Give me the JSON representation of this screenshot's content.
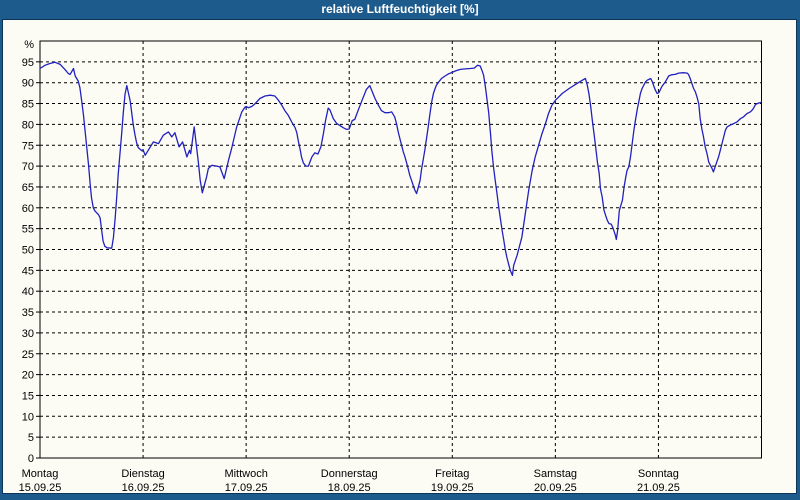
{
  "title": "relative Luftfeuchtigkeit [%]",
  "colors": {
    "titlebar": "#1d5b8d",
    "frame": "#1d5b8d",
    "inner_border": "#0b3456",
    "panel_bg": "#fcfcf5",
    "line": "#2121bf",
    "grid": "#000000",
    "text": "#000000",
    "title_text": "#ffffff"
  },
  "y_axis": {
    "unit_label": "%",
    "ticks": [
      0,
      5,
      10,
      15,
      20,
      25,
      30,
      35,
      40,
      45,
      50,
      55,
      60,
      65,
      70,
      75,
      80,
      85,
      90,
      95
    ]
  },
  "x_axis": {
    "days": [
      {
        "name": "Montag",
        "date": "15.09.25"
      },
      {
        "name": "Dienstag",
        "date": "16.09.25"
      },
      {
        "name": "Mittwoch",
        "date": "17.09.25"
      },
      {
        "name": "Donnerstag",
        "date": "18.09.25"
      },
      {
        "name": "Freitag",
        "date": "19.09.25"
      },
      {
        "name": "Samstag",
        "date": "20.09.25"
      },
      {
        "name": "Sonntag",
        "date": "21.09.25"
      }
    ],
    "vertical_gridlines_hours": [
      24,
      48,
      72,
      96,
      120,
      144
    ]
  },
  "chart_data": {
    "type": "line",
    "title": "relative Luftfeuchtigkeit [%]",
    "xlabel": "",
    "ylabel": "%",
    "ylim": [
      0,
      100
    ],
    "xlim_hours": [
      0,
      168
    ],
    "grid": "dashed, every 5 % horizontally, every 24 h vertically",
    "legend": "none",
    "series": [
      {
        "name": "relative Luftfeuchtigkeit",
        "color": "#2121bf",
        "x_unit": "hours since 15.09.25 00:00",
        "points": [
          [
            0,
            93.4
          ],
          [
            1.2,
            94.2
          ],
          [
            2.3,
            94.6
          ],
          [
            3.5,
            94.9
          ],
          [
            4.7,
            94.4
          ],
          [
            5.8,
            93.2
          ],
          [
            6.6,
            92.2
          ],
          [
            7.0,
            92.0
          ],
          [
            7.8,
            93.4
          ],
          [
            8.2,
            91.6
          ],
          [
            8.9,
            90.4
          ],
          [
            9.3,
            88.8
          ],
          [
            9.7,
            85.6
          ],
          [
            10.1,
            82.4
          ],
          [
            10.5,
            78.4
          ],
          [
            10.9,
            74.4
          ],
          [
            11.3,
            70.4
          ],
          [
            11.7,
            65.6
          ],
          [
            12.0,
            62.4
          ],
          [
            12.4,
            60.0
          ],
          [
            12.8,
            59.2
          ],
          [
            13.6,
            58.4
          ],
          [
            14.0,
            57.6
          ],
          [
            14.4,
            54.4
          ],
          [
            14.7,
            52.0
          ],
          [
            15.1,
            50.8
          ],
          [
            15.6,
            50.4
          ],
          [
            16.7,
            50.3
          ],
          [
            17.1,
            52.8
          ],
          [
            17.5,
            57.6
          ],
          [
            17.9,
            63.2
          ],
          [
            18.2,
            68.0
          ],
          [
            18.6,
            72.8
          ],
          [
            19.0,
            77.6
          ],
          [
            19.4,
            82.8
          ],
          [
            19.8,
            87.2
          ],
          [
            20.2,
            89.3
          ],
          [
            21.0,
            85.6
          ],
          [
            21.7,
            80.0
          ],
          [
            22.1,
            77.6
          ],
          [
            22.5,
            75.6
          ],
          [
            22.9,
            74.4
          ],
          [
            23.7,
            73.7
          ],
          [
            24.0,
            73.9
          ],
          [
            24.5,
            72.6
          ],
          [
            25.2,
            73.8
          ],
          [
            26.4,
            75.8
          ],
          [
            27.6,
            75.4
          ],
          [
            28.7,
            77.4
          ],
          [
            29.9,
            78.2
          ],
          [
            30.7,
            77.0
          ],
          [
            31.4,
            78.0
          ],
          [
            32.4,
            74.6
          ],
          [
            33.2,
            75.8
          ],
          [
            34.2,
            72.2
          ],
          [
            34.8,
            73.8
          ],
          [
            35.1,
            73.0
          ],
          [
            35.9,
            79.4
          ],
          [
            36.9,
            70.6
          ],
          [
            37.3,
            66.6
          ],
          [
            37.8,
            63.6
          ],
          [
            38.8,
            67.4
          ],
          [
            39.2,
            69.4
          ],
          [
            40.0,
            70.2
          ],
          [
            41.2,
            70.0
          ],
          [
            41.9,
            69.8
          ],
          [
            42.9,
            67.0
          ],
          [
            43.9,
            71.4
          ],
          [
            44.7,
            74.6
          ],
          [
            45.8,
            79.4
          ],
          [
            47.0,
            83.0
          ],
          [
            47.7,
            84.1
          ],
          [
            48.0,
            84.3
          ],
          [
            48.5,
            84.0
          ],
          [
            49.3,
            84.3
          ],
          [
            50.1,
            85.0
          ],
          [
            51.2,
            86.2
          ],
          [
            52.4,
            86.8
          ],
          [
            53.6,
            87.0
          ],
          [
            54.7,
            86.8
          ],
          [
            55.5,
            85.8
          ],
          [
            56.3,
            84.6
          ],
          [
            57.0,
            83.3
          ],
          [
            57.8,
            82.2
          ],
          [
            58.6,
            80.6
          ],
          [
            59.4,
            79.2
          ],
          [
            59.8,
            78.0
          ],
          [
            60.2,
            75.8
          ],
          [
            60.6,
            73.8
          ],
          [
            60.9,
            72.2
          ],
          [
            61.3,
            70.8
          ],
          [
            61.9,
            70.0
          ],
          [
            62.5,
            70.0
          ],
          [
            63.3,
            72.2
          ],
          [
            64.0,
            73.2
          ],
          [
            64.7,
            72.9
          ],
          [
            65.4,
            74.6
          ],
          [
            66.0,
            77.8
          ],
          [
            66.5,
            81.0
          ],
          [
            67.1,
            83.9
          ],
          [
            67.5,
            83.5
          ],
          [
            68.3,
            81.4
          ],
          [
            69.1,
            80.2
          ],
          [
            69.9,
            79.7
          ],
          [
            70.6,
            79.2
          ],
          [
            71.4,
            78.8
          ],
          [
            72.0,
            78.9
          ],
          [
            72.7,
            80.9
          ],
          [
            73.3,
            81.2
          ],
          [
            74.1,
            83.4
          ],
          [
            75.0,
            85.8
          ],
          [
            76.0,
            88.4
          ],
          [
            76.8,
            89.3
          ],
          [
            78.0,
            86.2
          ],
          [
            78.8,
            84.6
          ],
          [
            79.5,
            83.3
          ],
          [
            80.3,
            82.8
          ],
          [
            81.1,
            82.8
          ],
          [
            81.9,
            83.0
          ],
          [
            82.6,
            81.8
          ],
          [
            83.0,
            80.2
          ],
          [
            83.4,
            78.2
          ],
          [
            83.8,
            76.6
          ],
          [
            84.2,
            75.0
          ],
          [
            84.6,
            73.4
          ],
          [
            85.0,
            72.2
          ],
          [
            85.4,
            70.6
          ],
          [
            85.7,
            69.4
          ],
          [
            86.1,
            67.8
          ],
          [
            86.5,
            66.6
          ],
          [
            86.9,
            65.4
          ],
          [
            87.3,
            64.2
          ],
          [
            87.7,
            63.4
          ],
          [
            88.5,
            66.6
          ],
          [
            88.8,
            69.0
          ],
          [
            89.2,
            71.4
          ],
          [
            89.6,
            73.8
          ],
          [
            90.0,
            76.6
          ],
          [
            90.4,
            79.4
          ],
          [
            90.8,
            82.6
          ],
          [
            91.2,
            85.4
          ],
          [
            91.6,
            87.4
          ],
          [
            92.0,
            88.6
          ],
          [
            92.3,
            89.4
          ],
          [
            92.7,
            90.0
          ],
          [
            93.5,
            91.0
          ],
          [
            94.3,
            91.6
          ],
          [
            95.1,
            92.1
          ],
          [
            95.8,
            92.4
          ],
          [
            96.0,
            92.5
          ],
          [
            96.9,
            92.9
          ],
          [
            97.9,
            93.2
          ],
          [
            99.0,
            93.3
          ],
          [
            100.2,
            93.4
          ],
          [
            101.1,
            93.5
          ],
          [
            101.9,
            94.2
          ],
          [
            102.5,
            94.0
          ],
          [
            102.9,
            93.0
          ],
          [
            103.3,
            91.8
          ],
          [
            103.7,
            89.0
          ],
          [
            104.1,
            85.8
          ],
          [
            104.5,
            82.6
          ],
          [
            104.7,
            80.2
          ],
          [
            104.9,
            77.8
          ],
          [
            105.2,
            73.8
          ],
          [
            105.6,
            69.8
          ],
          [
            106.0,
            66.6
          ],
          [
            106.4,
            63.4
          ],
          [
            106.8,
            60.2
          ],
          [
            107.2,
            57.4
          ],
          [
            107.6,
            54.6
          ],
          [
            108.0,
            52.2
          ],
          [
            108.3,
            50.2
          ],
          [
            108.7,
            48.2
          ],
          [
            109.1,
            46.6
          ],
          [
            109.5,
            45.0
          ],
          [
            110.0,
            43.8
          ],
          [
            110.3,
            46.2
          ],
          [
            111.1,
            48.6
          ],
          [
            112.2,
            53.0
          ],
          [
            113.0,
            58.6
          ],
          [
            113.8,
            64.2
          ],
          [
            114.6,
            69.0
          ],
          [
            115.3,
            72.2
          ],
          [
            116.1,
            75.0
          ],
          [
            116.9,
            77.8
          ],
          [
            117.7,
            80.2
          ],
          [
            118.4,
            82.6
          ],
          [
            119.2,
            84.6
          ],
          [
            120.0,
            85.8
          ],
          [
            120.7,
            86.5
          ],
          [
            121.6,
            87.4
          ],
          [
            123.2,
            88.6
          ],
          [
            124.7,
            89.6
          ],
          [
            126.3,
            90.6
          ],
          [
            127.0,
            91.0
          ],
          [
            127.4,
            89.6
          ],
          [
            127.8,
            87.4
          ],
          [
            128.2,
            84.5
          ],
          [
            128.6,
            81.0
          ],
          [
            129.0,
            77.8
          ],
          [
            129.4,
            74.5
          ],
          [
            129.8,
            71.0
          ],
          [
            130.2,
            68.2
          ],
          [
            130.5,
            64.5
          ],
          [
            130.9,
            62.6
          ],
          [
            131.3,
            59.5
          ],
          [
            131.7,
            58.2
          ],
          [
            132.1,
            57.0
          ],
          [
            132.5,
            56.2
          ],
          [
            133.0,
            56.1
          ],
          [
            133.4,
            55.2
          ],
          [
            134.0,
            53.3
          ],
          [
            134.2,
            52.4
          ],
          [
            134.5,
            54.5
          ],
          [
            134.9,
            59.3
          ],
          [
            135.6,
            61.8
          ],
          [
            136.0,
            65.0
          ],
          [
            136.4,
            67.4
          ],
          [
            136.7,
            69.0
          ],
          [
            137.1,
            69.8
          ],
          [
            137.5,
            72.2
          ],
          [
            137.9,
            75.4
          ],
          [
            138.3,
            78.6
          ],
          [
            138.7,
            81.4
          ],
          [
            139.1,
            83.8
          ],
          [
            139.5,
            85.8
          ],
          [
            139.8,
            87.4
          ],
          [
            140.2,
            88.6
          ],
          [
            140.6,
            89.4
          ],
          [
            141.0,
            90.2
          ],
          [
            141.4,
            90.6
          ],
          [
            142.2,
            91.0
          ],
          [
            142.6,
            90.2
          ],
          [
            143.0,
            89.0
          ],
          [
            143.3,
            88.2
          ],
          [
            143.7,
            87.4
          ],
          [
            144.1,
            87.6
          ],
          [
            144.8,
            89.1
          ],
          [
            145.6,
            90.2
          ],
          [
            146.4,
            91.6
          ],
          [
            147.0,
            91.9
          ],
          [
            147.9,
            92.0
          ],
          [
            148.7,
            92.3
          ],
          [
            149.8,
            92.4
          ],
          [
            150.7,
            92.3
          ],
          [
            151.0,
            92.0
          ],
          [
            151.4,
            91.0
          ],
          [
            151.8,
            89.8
          ],
          [
            152.2,
            88.6
          ],
          [
            152.6,
            87.8
          ],
          [
            153.0,
            86.5
          ],
          [
            153.4,
            84.9
          ],
          [
            153.7,
            81.5
          ],
          [
            154.1,
            79.0
          ],
          [
            154.5,
            77.0
          ],
          [
            154.9,
            74.6
          ],
          [
            155.3,
            73.0
          ],
          [
            155.7,
            71.0
          ],
          [
            156.1,
            70.2
          ],
          [
            156.5,
            69.4
          ],
          [
            156.8,
            68.6
          ],
          [
            157.2,
            69.8
          ],
          [
            157.6,
            71.0
          ],
          [
            158.0,
            72.2
          ],
          [
            158.4,
            73.8
          ],
          [
            158.8,
            75.4
          ],
          [
            159.2,
            77.0
          ],
          [
            159.6,
            78.6
          ],
          [
            160.0,
            79.4
          ],
          [
            160.7,
            79.8
          ],
          [
            161.5,
            80.2
          ],
          [
            162.3,
            80.6
          ],
          [
            163.1,
            81.4
          ],
          [
            163.8,
            81.8
          ],
          [
            164.6,
            82.6
          ],
          [
            165.4,
            83.0
          ],
          [
            165.8,
            83.4
          ],
          [
            166.2,
            84.0
          ],
          [
            166.6,
            84.8
          ],
          [
            167.3,
            85.1
          ],
          [
            168.0,
            85.3
          ]
        ]
      }
    ]
  }
}
